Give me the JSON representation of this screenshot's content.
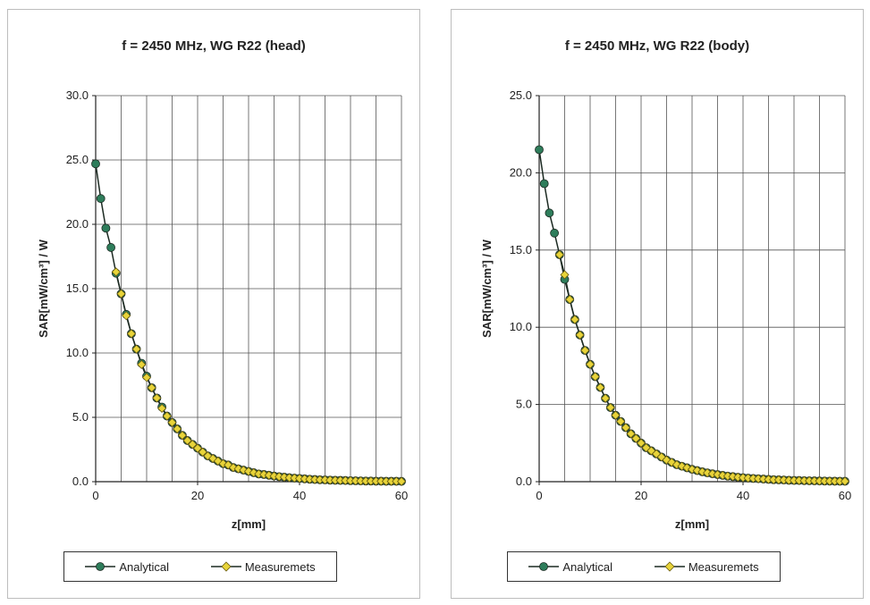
{
  "chart_data": [
    {
      "type": "line",
      "title": "f = 2450 MHz, WG R22 (head)",
      "xlabel": "z[mm]",
      "ylabel": "SAR[mW/cm³] / W",
      "xlim": [
        0,
        60
      ],
      "ylim": [
        0,
        30
      ],
      "xticks": [
        "0",
        "20",
        "40",
        "60"
      ],
      "yticks": [
        "0.0",
        "5.0",
        "10.0",
        "15.0",
        "20.0",
        "25.0",
        "30.0"
      ],
      "grid": "vertical every 5 mm, horizontal every 5.0",
      "legend": "bottom",
      "series": [
        {
          "name": "Analytical",
          "color": "#2e7d5b",
          "x": [
            0,
            1,
            2,
            3,
            4,
            5,
            6,
            7,
            8,
            9,
            10,
            11,
            12,
            13,
            14,
            15,
            16,
            17,
            18,
            19,
            20,
            21,
            22,
            23,
            24,
            25,
            26,
            27,
            28,
            29,
            30,
            31,
            32,
            33,
            34,
            35,
            36,
            37,
            38,
            39,
            40,
            41,
            42,
            43,
            44,
            45,
            46,
            47,
            48,
            49,
            50,
            51,
            52,
            53,
            54,
            55,
            56,
            57,
            58,
            59,
            60
          ],
          "values": [
            24.7,
            22.0,
            19.7,
            18.2,
            16.2,
            14.6,
            13.0,
            11.5,
            10.3,
            9.2,
            8.2,
            7.3,
            6.5,
            5.8,
            5.1,
            4.6,
            4.1,
            3.6,
            3.2,
            2.9,
            2.6,
            2.3,
            2.0,
            1.8,
            1.6,
            1.4,
            1.3,
            1.1,
            1.0,
            0.9,
            0.8,
            0.7,
            0.6,
            0.56,
            0.5,
            0.44,
            0.39,
            0.35,
            0.31,
            0.28,
            0.25,
            0.22,
            0.19,
            0.17,
            0.15,
            0.14,
            0.12,
            0.11,
            0.1,
            0.09,
            0.08,
            0.07,
            0.06,
            0.05,
            0.05,
            0.04,
            0.04,
            0.03,
            0.03,
            0.03,
            0.02
          ]
        },
        {
          "name": "Measuremets",
          "color": "#e8d43a",
          "x": [
            4,
            5,
            6,
            7,
            8,
            9,
            10,
            11,
            12,
            13,
            14,
            15,
            16,
            17,
            18,
            19,
            20,
            21,
            22,
            23,
            24,
            25,
            26,
            27,
            28,
            29,
            30,
            31,
            32,
            33,
            34,
            35,
            36,
            37,
            38,
            39,
            40,
            41,
            42,
            43,
            44,
            45,
            46,
            47,
            48,
            49,
            50,
            51,
            52,
            53,
            54,
            55,
            56,
            57,
            58,
            59,
            60
          ],
          "values": [
            16.3,
            14.6,
            12.9,
            11.5,
            10.3,
            9.1,
            8.1,
            7.3,
            6.5,
            5.7,
            5.1,
            4.6,
            4.1,
            3.6,
            3.2,
            2.9,
            2.6,
            2.3,
            2.0,
            1.8,
            1.6,
            1.4,
            1.3,
            1.1,
            1.0,
            0.9,
            0.8,
            0.7,
            0.6,
            0.56,
            0.5,
            0.44,
            0.39,
            0.35,
            0.31,
            0.28,
            0.25,
            0.22,
            0.19,
            0.17,
            0.15,
            0.14,
            0.12,
            0.11,
            0.1,
            0.09,
            0.08,
            0.07,
            0.06,
            0.05,
            0.05,
            0.04,
            0.04,
            0.03,
            0.03,
            0.03,
            0.02
          ]
        }
      ]
    },
    {
      "type": "line",
      "title": "f = 2450 MHz, WG R22 (body)",
      "xlabel": "z[mm]",
      "ylabel": "SAR[mW/cm³] / W",
      "xlim": [
        0,
        60
      ],
      "ylim": [
        0,
        25
      ],
      "xticks": [
        "0",
        "20",
        "40",
        "60"
      ],
      "yticks": [
        "0.0",
        "5.0",
        "10.0",
        "15.0",
        "20.0",
        "25.0"
      ],
      "grid": "vertical every 5 mm, horizontal every 5.0",
      "legend": "bottom",
      "series": [
        {
          "name": "Analytical",
          "color": "#2e7d5b",
          "x": [
            0,
            1,
            2,
            3,
            4,
            5,
            6,
            7,
            8,
            9,
            10,
            11,
            12,
            13,
            14,
            15,
            16,
            17,
            18,
            19,
            20,
            21,
            22,
            23,
            24,
            25,
            26,
            27,
            28,
            29,
            30,
            31,
            32,
            33,
            34,
            35,
            36,
            37,
            38,
            39,
            40,
            41,
            42,
            43,
            44,
            45,
            46,
            47,
            48,
            49,
            50,
            51,
            52,
            53,
            54,
            55,
            56,
            57,
            58,
            59,
            60
          ],
          "values": [
            21.5,
            19.3,
            17.4,
            16.1,
            14.7,
            13.1,
            11.8,
            10.5,
            9.5,
            8.5,
            7.6,
            6.8,
            6.1,
            5.4,
            4.8,
            4.3,
            3.9,
            3.5,
            3.1,
            2.8,
            2.5,
            2.2,
            2.0,
            1.8,
            1.6,
            1.4,
            1.25,
            1.1,
            1.0,
            0.9,
            0.8,
            0.72,
            0.64,
            0.57,
            0.51,
            0.46,
            0.41,
            0.36,
            0.33,
            0.29,
            0.26,
            0.23,
            0.21,
            0.19,
            0.17,
            0.15,
            0.13,
            0.12,
            0.11,
            0.09,
            0.08,
            0.075,
            0.067,
            0.06,
            0.054,
            0.048,
            0.043,
            0.038,
            0.034,
            0.03,
            0.027
          ]
        },
        {
          "name": "Measuremets",
          "color": "#e8d43a",
          "x": [
            4,
            5,
            6,
            7,
            8,
            9,
            10,
            11,
            12,
            13,
            14,
            15,
            16,
            17,
            18,
            19,
            20,
            21,
            22,
            23,
            24,
            25,
            26,
            27,
            28,
            29,
            30,
            31,
            32,
            33,
            34,
            35,
            36,
            37,
            38,
            39,
            40,
            41,
            42,
            43,
            44,
            45,
            46,
            47,
            48,
            49,
            50,
            51,
            52,
            53,
            54,
            55,
            56,
            57,
            58,
            59,
            60
          ],
          "values": [
            14.7,
            13.4,
            11.8,
            10.5,
            9.5,
            8.5,
            7.6,
            6.8,
            6.1,
            5.4,
            4.8,
            4.3,
            3.9,
            3.5,
            3.1,
            2.8,
            2.5,
            2.2,
            2.0,
            1.8,
            1.6,
            1.4,
            1.25,
            1.1,
            1.0,
            0.9,
            0.8,
            0.72,
            0.64,
            0.57,
            0.51,
            0.46,
            0.41,
            0.36,
            0.33,
            0.29,
            0.26,
            0.23,
            0.21,
            0.19,
            0.17,
            0.15,
            0.13,
            0.12,
            0.11,
            0.09,
            0.08,
            0.075,
            0.067,
            0.06,
            0.054,
            0.048,
            0.043,
            0.038,
            0.034,
            0.03,
            0.027
          ]
        }
      ]
    }
  ]
}
